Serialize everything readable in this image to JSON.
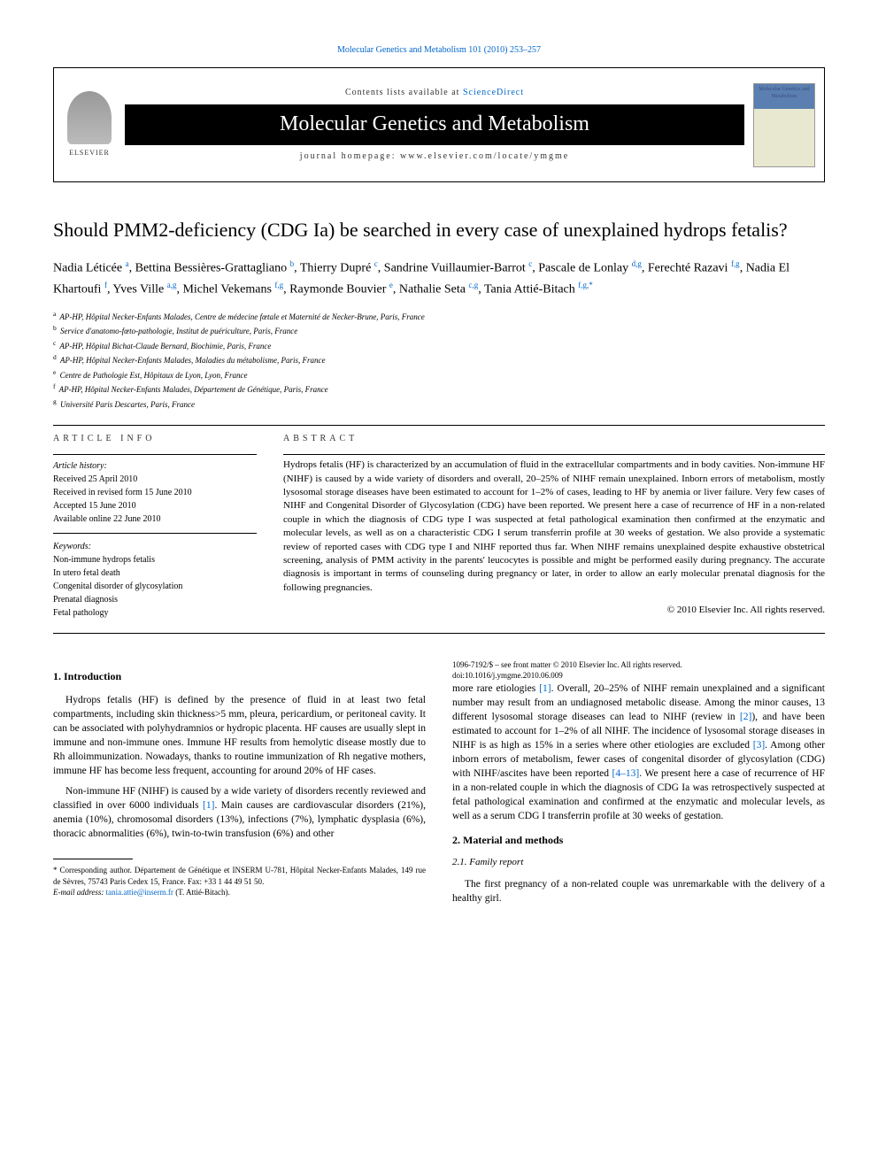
{
  "top_link": "Molecular Genetics and Metabolism 101 (2010) 253–257",
  "header": {
    "contents_prefix": "Contents lists available at ",
    "contents_link": "ScienceDirect",
    "journal_title": "Molecular Genetics and Metabolism",
    "homepage_prefix": "journal homepage: ",
    "homepage_url": "www.elsevier.com/locate/ymgme",
    "elsevier_label": "ELSEVIER",
    "cover_text": "Molecular Genetics and Metabolism"
  },
  "article_title": "Should PMM2-deficiency (CDG Ia) be searched in every case of unexplained hydrops fetalis?",
  "authors_html": "Nadia Léticée <sup>a</sup>, Bettina Bessières-Grattagliano <sup>b</sup>, Thierry Dupré <sup>c</sup>, Sandrine Vuillaumier-Barrot <sup>c</sup>, Pascale de Lonlay <sup>d,g</sup>, Ferechté Razavi <sup>f,g</sup>, Nadia El Khartoufi <sup>f</sup>, Yves Ville <sup>a,g</sup>, Michel Vekemans <sup>f,g</sup>, Raymonde Bouvier <sup>e</sup>, Nathalie Seta <sup>c,g</sup>, Tania Attié-Bitach <sup>f,g,*</sup>",
  "affiliations": [
    {
      "sup": "a",
      "text": "AP-HP, Hôpital Necker-Enfants Malades, Centre de médecine fœtale et Maternité de Necker-Brune, Paris, France"
    },
    {
      "sup": "b",
      "text": "Service d'anatomo-fœto-pathologie, Institut de puériculture, Paris, France"
    },
    {
      "sup": "c",
      "text": "AP-HP, Hôpital Bichat-Claude Bernard, Biochimie, Paris, France"
    },
    {
      "sup": "d",
      "text": "AP-HP, Hôpital Necker-Enfants Malades, Maladies du métabolisme, Paris, France"
    },
    {
      "sup": "e",
      "text": "Centre de Pathologie Est, Hôpitaux de Lyon, Lyon, France"
    },
    {
      "sup": "f",
      "text": "AP-HP, Hôpital Necker-Enfants Malades, Département de Génétique, Paris, France"
    },
    {
      "sup": "g",
      "text": "Université Paris Descartes, Paris, France"
    }
  ],
  "article_info": {
    "head": "ARTICLE INFO",
    "history_head": "Article history:",
    "received": "Received 25 April 2010",
    "revised": "Received in revised form 15 June 2010",
    "accepted": "Accepted 15 June 2010",
    "online": "Available online 22 June 2010",
    "keywords_head": "Keywords:",
    "keywords": [
      "Non-immune hydrops fetalis",
      "In utero fetal death",
      "Congenital disorder of glycosylation",
      "Prenatal diagnosis",
      "Fetal pathology"
    ]
  },
  "abstract": {
    "head": "ABSTRACT",
    "text": "Hydrops fetalis (HF) is characterized by an accumulation of fluid in the extracellular compartments and in body cavities. Non-immune HF (NIHF) is caused by a wide variety of disorders and overall, 20–25% of NIHF remain unexplained. Inborn errors of metabolism, mostly lysosomal storage diseases have been estimated to account for 1–2% of cases, leading to HF by anemia or liver failure. Very few cases of NIHF and Congenital Disorder of Glycosylation (CDG) have been reported. We present here a case of recurrence of HF in a non-related couple in which the diagnosis of CDG type I was suspected at fetal pathological examination then confirmed at the enzymatic and molecular levels, as well as on a characteristic CDG I serum transferrin profile at 30 weeks of gestation. We also provide a systematic review of reported cases with CDG type I and NIHF reported thus far. When NIHF remains unexplained despite exhaustive obstetrical screening, analysis of PMM activity in the parents' leucocytes is possible and might be performed easily during pregnancy. The accurate diagnosis is important in terms of counseling during pregnancy or later, in order to allow an early molecular prenatal diagnosis for the following pregnancies.",
    "copyright": "© 2010 Elsevier Inc. All rights reserved."
  },
  "sections": {
    "intro_head": "1. Introduction",
    "intro_p1": "Hydrops fetalis (HF) is defined by the presence of fluid in at least two fetal compartments, including skin thickness>5 mm, pleura, pericardium, or peritoneal cavity. It can be associated with polyhydramnios or hydropic placenta. HF causes are usually slept in immune and non-immune ones. Immune HF results from hemolytic disease mostly due to Rh alloimmunization. Nowadays, thanks to routine immunization of Rh negative mothers, immune HF has become less frequent, accounting for around 20% of HF cases.",
    "intro_p2_pre": "Non-immune HF (NIHF) is caused by a wide variety of disorders recently reviewed and classified in over 6000 individuals ",
    "intro_p2_ref1": "[1]",
    "intro_p2_post": ". Main causes are cardiovascular disorders (21%), anemia (10%), chromosomal disorders (13%), infections (7%), lymphatic dysplasia (6%), thoracic abnormalities (6%), twin-to-twin transfusion (6%) and other",
    "intro_p3_a": "more rare etiologies ",
    "intro_p3_ref1": "[1]",
    "intro_p3_b": ". Overall, 20–25% of NIHF remain unexplained and a significant number may result from an undiagnosed metabolic disease. Among the minor causes, 13 different lysosomal storage diseases can lead to NIHF (review in ",
    "intro_p3_ref2": "[2]",
    "intro_p3_c": "), and have been estimated to account for 1–2% of all NIHF. The incidence of lysosomal storage diseases in NIHF is as high as 15% in a series where other etiologies are excluded ",
    "intro_p3_ref3": "[3]",
    "intro_p3_d": ". Among other inborn errors of metabolism, fewer cases of congenital disorder of glycosylation (CDG) with NIHF/ascites have been reported ",
    "intro_p3_ref4": "[4–13]",
    "intro_p3_e": ". We present here a case of recurrence of HF in a non-related couple in which the diagnosis of CDG Ia was retrospectively suspected at fetal pathological examination and confirmed at the enzymatic and molecular levels, as well as a serum CDG I transferrin profile at 30 weeks of gestation.",
    "methods_head": "2. Material and methods",
    "family_head": "2.1. Family report",
    "family_p1": "The first pregnancy of a non-related couple was unremarkable with the delivery of a healthy girl."
  },
  "footnotes": {
    "corresponding": "* Corresponding author. Département de Génétique et INSERM U-781, Hôpital Necker-Enfants Malades, 149 rue de Sèvres, 75743 Paris Cedex 15, France. Fax: +33 1 44 49 51 50.",
    "email_label": "E-mail address: ",
    "email": "tania.attie@inserm.fr",
    "email_suffix": " (T. Attié-Bitach)."
  },
  "bottom": {
    "line1": "1096-7192/$ – see front matter © 2010 Elsevier Inc. All rights reserved.",
    "line2": "doi:10.1016/j.ymgme.2010.06.009"
  }
}
